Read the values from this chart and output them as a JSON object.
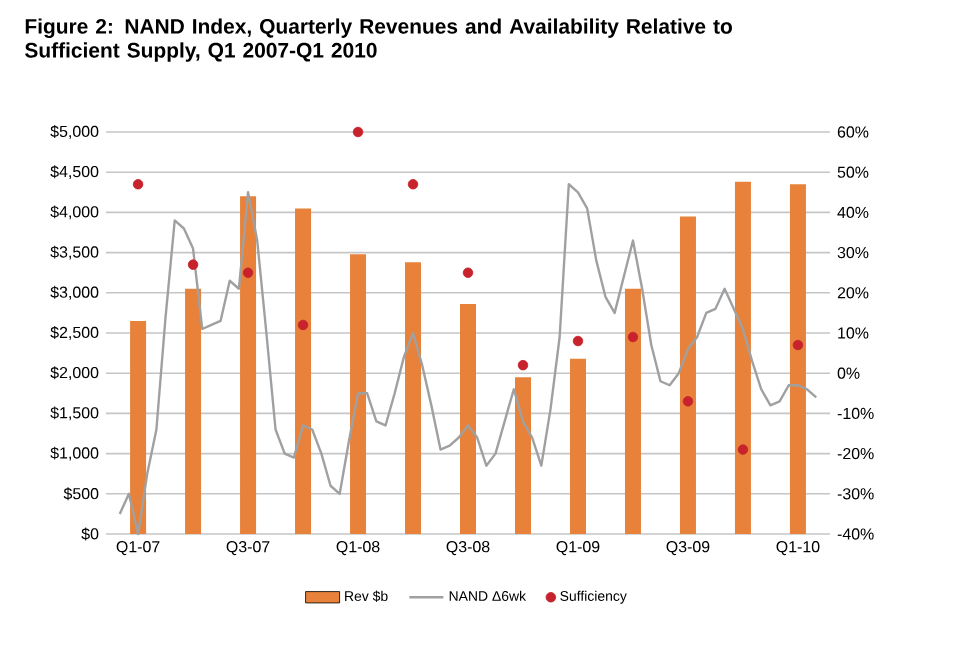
{
  "chart_data": {
    "type": "bar",
    "title": "Figure 2: NAND Index, Quarterly Revenues and Availability Relative to Sufficient Supply, Q1 2007-Q1 2010",
    "categories": [
      null,
      null,
      null,
      "Q1-07",
      null,
      null,
      null,
      null,
      null,
      null,
      null,
      null,
      null,
      null,
      null,
      "Q3-07",
      null,
      null,
      null,
      null,
      null,
      null,
      null,
      null,
      null,
      null,
      null,
      "Q1-08",
      null,
      null,
      null,
      null,
      null,
      null,
      null,
      null,
      null,
      null,
      null,
      "Q3-08",
      null,
      null,
      null,
      null,
      null,
      null,
      null,
      null,
      null,
      null,
      null,
      "Q1-09",
      null,
      null,
      null,
      null,
      null,
      null,
      null,
      null,
      null,
      null,
      null,
      "Q3-09",
      null,
      null,
      null,
      null,
      null,
      null,
      null,
      null,
      null,
      null,
      null,
      "Q1-10",
      null,
      null,
      null
    ],
    "series": [
      {
        "name": "Rev $b",
        "color": "#e8823a",
        "values": [
          null,
          null,
          null,
          2650,
          null,
          null,
          null,
          null,
          null,
          3050,
          null,
          null,
          null,
          null,
          null,
          4200,
          null,
          null,
          null,
          null,
          null,
          4050,
          null,
          null,
          null,
          null,
          null,
          3480,
          null,
          null,
          null,
          null,
          null,
          3380,
          null,
          null,
          null,
          null,
          null,
          2860,
          null,
          null,
          null,
          null,
          null,
          1950,
          null,
          null,
          null,
          null,
          null,
          2180,
          null,
          null,
          null,
          null,
          null,
          3050,
          null,
          null,
          null,
          null,
          null,
          3950,
          null,
          null,
          null,
          null,
          null,
          4380,
          null,
          null,
          null,
          null,
          null,
          4350,
          null,
          null,
          null
        ]
      },
      {
        "name": "NAND Δ6wk",
        "type": "line",
        "axis": "y2",
        "color": "#a0a0a0",
        "marker": "none",
        "line_style": "solid",
        "values": [
          null,
          -35,
          -30,
          -40,
          -25,
          -14,
          14,
          38,
          36,
          31,
          11,
          12,
          13,
          23,
          21,
          45,
          33,
          10,
          -14,
          -20,
          -21,
          -13,
          -14,
          -20,
          -28,
          -30,
          -17,
          -5,
          -5,
          -12,
          -13,
          -5,
          4,
          10,
          2,
          -8,
          -19,
          -18,
          -16,
          -13,
          -16,
          -23,
          -20,
          -12,
          -4,
          -12,
          -16,
          -23,
          -9,
          9,
          47,
          45,
          41,
          28,
          19,
          15,
          24,
          33,
          21,
          7,
          -2,
          -3,
          0,
          6,
          9,
          15,
          16,
          21,
          16,
          11,
          3,
          -4,
          -8,
          -7,
          -3,
          -3,
          -4,
          -6,
          null
        ]
      },
      {
        "name": "Sufficiency",
        "type": "scatter",
        "axis": "y2",
        "color": "#c8232c",
        "marker": "circle",
        "values": [
          null,
          null,
          null,
          47,
          null,
          null,
          null,
          null,
          null,
          27,
          null,
          null,
          null,
          null,
          null,
          25,
          null,
          null,
          null,
          null,
          null,
          12,
          null,
          null,
          null,
          null,
          null,
          60,
          null,
          null,
          null,
          null,
          null,
          47,
          null,
          null,
          null,
          null,
          null,
          25,
          null,
          null,
          null,
          null,
          null,
          2,
          null,
          null,
          null,
          null,
          null,
          8,
          null,
          null,
          null,
          null,
          null,
          9,
          null,
          null,
          null,
          null,
          null,
          -7,
          null,
          null,
          null,
          null,
          null,
          -19,
          null,
          null,
          null,
          null,
          null,
          7,
          null,
          null,
          null
        ]
      }
    ],
    "ylim": [
      0,
      5000
    ],
    "yticks": [
      {
        "value": 0,
        "label": "$0"
      },
      {
        "value": 500,
        "label": "$500"
      },
      {
        "value": 1000,
        "label": "$1,000"
      },
      {
        "value": 1500,
        "label": "$1,500"
      },
      {
        "value": 2000,
        "label": "$2,000"
      },
      {
        "value": 2500,
        "label": "$2,500"
      },
      {
        "value": 3000,
        "label": "$3,000"
      },
      {
        "value": 3500,
        "label": "$3,500"
      },
      {
        "value": 4000,
        "label": "$4,000"
      },
      {
        "value": 4500,
        "label": "$4,500"
      },
      {
        "value": 5000,
        "label": "$5,000"
      }
    ],
    "y2lim": [
      -40,
      60
    ],
    "y2ticks": [
      {
        "value": -40,
        "label": "-40%"
      },
      {
        "value": -30,
        "label": "-30%"
      },
      {
        "value": -20,
        "label": "-20%"
      },
      {
        "value": -10,
        "label": "-10%"
      },
      {
        "value": 0,
        "label": "0%"
      },
      {
        "value": 10,
        "label": "10%"
      },
      {
        "value": 20,
        "label": "20%"
      },
      {
        "value": 30,
        "label": "30%"
      },
      {
        "value": 40,
        "label": "40%"
      },
      {
        "value": 50,
        "label": "50%"
      },
      {
        "value": 60,
        "label": "60%"
      }
    ],
    "grid": "y",
    "legend": "bottom"
  }
}
